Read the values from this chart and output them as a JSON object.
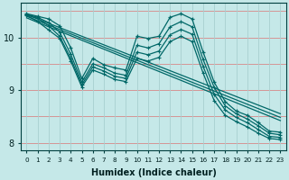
{
  "xlabel": "Humidex (Indice chaleur)",
  "bg_color": "#c5e8e8",
  "line_color": "#006868",
  "grid_color_h": "#d88888",
  "grid_color_v": "#a8d0d0",
  "xlim": [
    -0.5,
    23.5
  ],
  "ylim": [
    7.85,
    10.65
  ],
  "xticks": [
    0,
    1,
    2,
    3,
    4,
    5,
    6,
    7,
    8,
    9,
    10,
    11,
    12,
    13,
    14,
    15,
    16,
    17,
    18,
    19,
    20,
    21,
    22,
    23
  ],
  "yticks": [
    8,
    9,
    10
  ],
  "lines": [
    [
      10.45,
      10.4,
      10.35,
      10.22,
      9.8,
      9.22,
      9.6,
      9.48,
      9.42,
      9.38,
      10.02,
      9.98,
      10.02,
      10.38,
      10.45,
      10.35,
      9.72,
      9.15,
      8.78,
      8.6,
      8.52,
      8.38,
      8.22,
      8.2
    ],
    [
      10.44,
      10.38,
      10.28,
      10.1,
      9.68,
      9.15,
      9.5,
      9.42,
      9.32,
      9.28,
      9.85,
      9.8,
      9.88,
      10.2,
      10.3,
      10.2,
      9.58,
      9.05,
      8.7,
      8.55,
      8.45,
      8.32,
      8.18,
      8.15
    ],
    [
      10.43,
      10.36,
      10.22,
      10.02,
      9.6,
      9.1,
      9.44,
      9.36,
      9.26,
      9.22,
      9.72,
      9.67,
      9.74,
      10.05,
      10.15,
      10.06,
      9.45,
      8.92,
      8.62,
      8.48,
      8.38,
      8.25,
      8.12,
      8.1
    ],
    [
      10.42,
      10.3,
      10.14,
      9.98,
      9.55,
      9.06,
      9.38,
      9.3,
      9.2,
      9.16,
      9.6,
      9.55,
      9.62,
      9.92,
      10.02,
      9.92,
      9.32,
      8.8,
      8.52,
      8.4,
      8.3,
      8.18,
      8.08,
      8.06
    ]
  ],
  "straight_lines": [
    [
      [
        0,
        23
      ],
      [
        10.43,
        8.55
      ]
    ],
    [
      [
        0,
        23
      ],
      [
        10.4,
        8.48
      ]
    ],
    [
      [
        0,
        23
      ],
      [
        10.37,
        8.42
      ]
    ]
  ]
}
